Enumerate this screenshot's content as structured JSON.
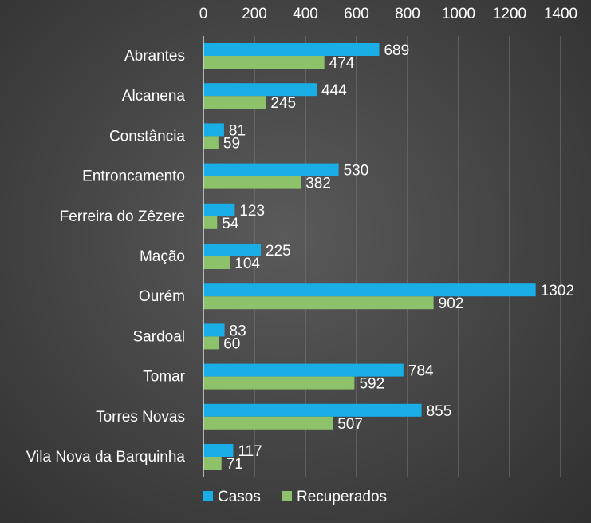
{
  "chart_data": {
    "type": "bar",
    "orientation": "horizontal",
    "categories": [
      "Abrantes",
      "Alcanena",
      "Constância",
      "Entroncamento",
      "Ferreira do Zêzere",
      "Mação",
      "Ourém",
      "Sardoal",
      "Tomar",
      "Torres Novas",
      "Vila Nova da Barquinha"
    ],
    "series": [
      {
        "name": "Casos",
        "color": "#1aaee6",
        "values": [
          689,
          444,
          81,
          530,
          123,
          225,
          1302,
          83,
          784,
          855,
          117
        ]
      },
      {
        "name": "Recuperados",
        "color": "#8dc16a",
        "values": [
          474,
          245,
          59,
          382,
          54,
          104,
          902,
          60,
          592,
          507,
          71
        ]
      }
    ],
    "xlim": [
      0,
      1400
    ],
    "x_ticks": [
      0,
      200,
      400,
      600,
      800,
      1000,
      1200,
      1400
    ],
    "x_axis_position": "top",
    "grid": true,
    "legend_position": "bottom"
  }
}
